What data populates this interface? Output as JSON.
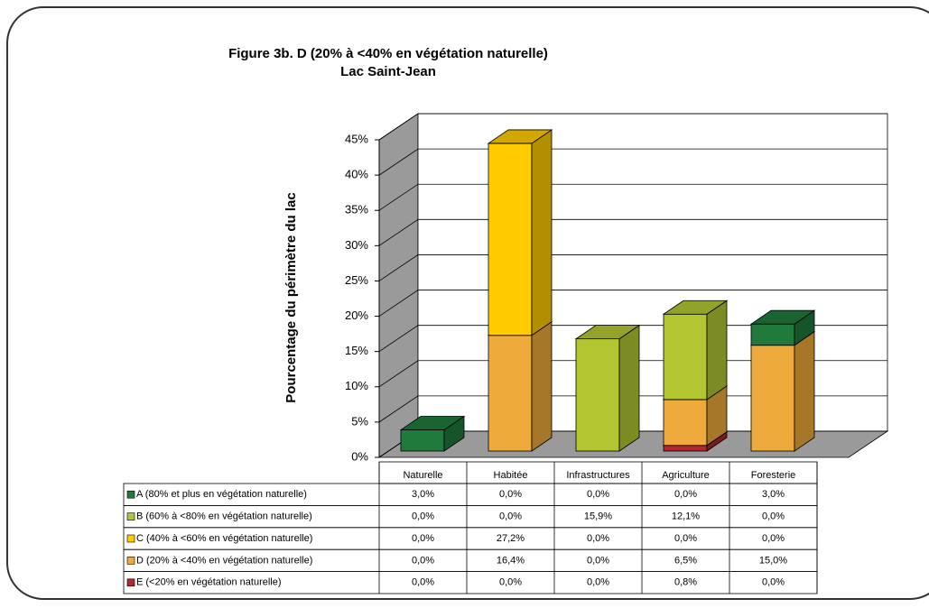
{
  "chart_data": {
    "type": "bar3d_stacked",
    "title": "Figure 3b. D (20% à <40% en végétation  naturelle)",
    "subtitle": "Lac Saint-Jean",
    "y_label": "Pourcentage du périmètre du lac",
    "categories": [
      "Naturelle",
      "Habitée",
      "Infrastructures",
      "Agriculture",
      "Foresterie"
    ],
    "ylim": [
      0,
      45
    ],
    "yticks": [
      {
        "value": 0,
        "label": "0%"
      },
      {
        "value": 5,
        "label": "5%"
      },
      {
        "value": 10,
        "label": "10%"
      },
      {
        "value": 15,
        "label": "15%"
      },
      {
        "value": 20,
        "label": "20%"
      },
      {
        "value": 25,
        "label": "25%"
      },
      {
        "value": 30,
        "label": "30%"
      },
      {
        "value": 35,
        "label": "35%"
      },
      {
        "value": 40,
        "label": "40%"
      },
      {
        "value": 45,
        "label": "45%"
      }
    ],
    "grid": true,
    "series": [
      {
        "name": "A (80% et plus en végétation naturelle)",
        "color": "#1f7a3c",
        "values": [
          3.0,
          0.0,
          0.0,
          0.0,
          3.0
        ],
        "value_labels": [
          "3,0%",
          "0,0%",
          "0,0%",
          "0,0%",
          "3,0%"
        ]
      },
      {
        "name": "B (60% à <80% en végétation naturelle)",
        "color": "#b3c632",
        "values": [
          0.0,
          0.0,
          15.9,
          12.1,
          0.0
        ],
        "value_labels": [
          "0,0%",
          "0,0%",
          "15,9%",
          "12,1%",
          "0,0%"
        ]
      },
      {
        "name": "C (40% à <60% en végétation naturelle)",
        "color": "#ffcc00",
        "values": [
          0.0,
          27.2,
          0.0,
          0.0,
          0.0
        ],
        "value_labels": [
          "0,0%",
          "27,2%",
          "0,0%",
          "0,0%",
          "0,0%"
        ]
      },
      {
        "name": "D (20% à <40% en végétation naturelle)",
        "color": "#eeaa3a",
        "values": [
          0.0,
          16.4,
          0.0,
          6.5,
          15.0
        ],
        "value_labels": [
          "0,0%",
          "16,4%",
          "0,0%",
          "6,5%",
          "15,0%"
        ]
      },
      {
        "name": "E (<20% en végétation naturelle)",
        "color": "#b3282a",
        "values": [
          0.0,
          0.0,
          0.0,
          0.8,
          0.0
        ],
        "value_labels": [
          "0,0%",
          "0,0%",
          "0,0%",
          "0,8%",
          "0,0%"
        ]
      }
    ]
  }
}
